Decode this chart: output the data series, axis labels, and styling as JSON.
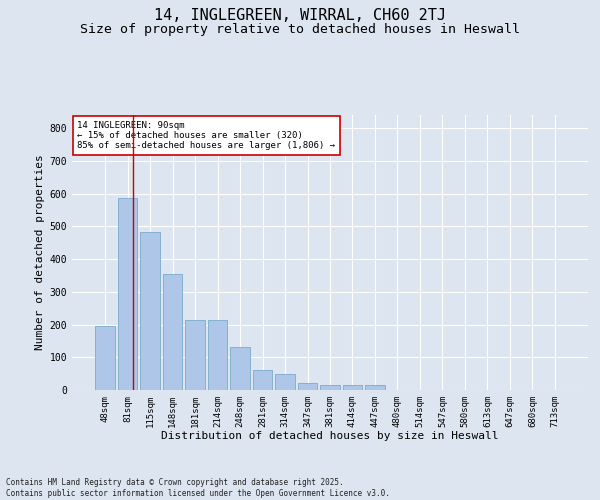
{
  "title1": "14, INGLEGREEN, WIRRAL, CH60 2TJ",
  "title2": "Size of property relative to detached houses in Heswall",
  "xlabel": "Distribution of detached houses by size in Heswall",
  "ylabel": "Number of detached properties",
  "categories": [
    "48sqm",
    "81sqm",
    "115sqm",
    "148sqm",
    "181sqm",
    "214sqm",
    "248sqm",
    "281sqm",
    "314sqm",
    "347sqm",
    "381sqm",
    "414sqm",
    "447sqm",
    "480sqm",
    "514sqm",
    "547sqm",
    "580sqm",
    "613sqm",
    "647sqm",
    "680sqm",
    "713sqm"
  ],
  "values": [
    196,
    585,
    483,
    355,
    215,
    215,
    130,
    60,
    50,
    20,
    16,
    16,
    16,
    0,
    0,
    0,
    0,
    0,
    0,
    0,
    0
  ],
  "bar_color": "#aec6e8",
  "bar_edge_color": "#7aabcc",
  "bar_width": 0.85,
  "vline_x": 1.25,
  "vline_color": "#cc0000",
  "annotation_text": "14 INGLEGREEN: 90sqm\n← 15% of detached houses are smaller (320)\n85% of semi-detached houses are larger (1,806) →",
  "annotation_box_color": "#ffffff",
  "annotation_box_edge": "#cc0000",
  "ylim": [
    0,
    840
  ],
  "yticks": [
    0,
    100,
    200,
    300,
    400,
    500,
    600,
    700,
    800
  ],
  "bg_color": "#dde5f0",
  "axes_bg_color": "#dde5f0",
  "footnote": "Contains HM Land Registry data © Crown copyright and database right 2025.\nContains public sector information licensed under the Open Government Licence v3.0.",
  "title_fontsize": 11,
  "subtitle_fontsize": 9.5,
  "tick_fontsize": 6.5,
  "label_fontsize": 8,
  "footnote_fontsize": 5.5,
  "annotation_fontsize": 6.5
}
